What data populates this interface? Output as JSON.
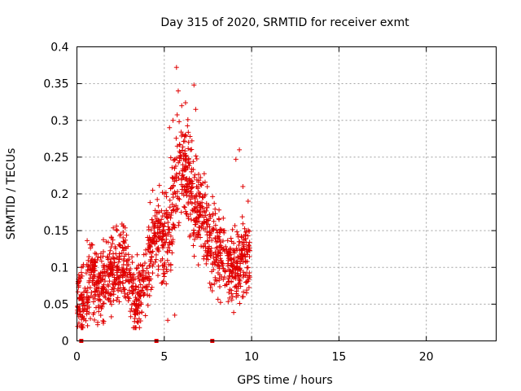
{
  "chart_data": {
    "type": "scatter",
    "title": "Day 315 of 2020, SRMTID for receiver exmt",
    "xlabel": "GPS time / hours",
    "ylabel": "SRMTID / TECUs",
    "xlim": [
      0,
      24
    ],
    "ylim": [
      0,
      0.4
    ],
    "x_ticks": [
      0,
      5,
      10,
      15,
      20
    ],
    "x_tick_labels": [
      "0",
      "5",
      "10",
      "15",
      "20"
    ],
    "y_ticks": [
      0,
      0.05,
      0.1,
      0.15,
      0.2,
      0.25,
      0.3,
      0.35,
      0.4
    ],
    "y_tick_labels": [
      "0",
      "0.05",
      "0.1",
      "0.15",
      "0.2",
      "0.25",
      "0.3",
      "0.35",
      "0.4"
    ],
    "grid": true,
    "series_color": "#e00000",
    "zero_markers_x": [
      0.25,
      4.55,
      7.75
    ],
    "trend": [
      {
        "x": 0.0,
        "y": 0.065
      },
      {
        "x": 0.3,
        "y": 0.045
      },
      {
        "x": 0.5,
        "y": 0.07
      },
      {
        "x": 0.8,
        "y": 0.09
      },
      {
        "x": 1.0,
        "y": 0.085
      },
      {
        "x": 1.3,
        "y": 0.07
      },
      {
        "x": 1.6,
        "y": 0.08
      },
      {
        "x": 2.0,
        "y": 0.095
      },
      {
        "x": 2.4,
        "y": 0.1
      },
      {
        "x": 2.8,
        "y": 0.11
      },
      {
        "x": 3.2,
        "y": 0.07
      },
      {
        "x": 3.5,
        "y": 0.055
      },
      {
        "x": 3.9,
        "y": 0.085
      },
      {
        "x": 4.3,
        "y": 0.13
      },
      {
        "x": 4.7,
        "y": 0.145
      },
      {
        "x": 5.0,
        "y": 0.13
      },
      {
        "x": 5.3,
        "y": 0.15
      },
      {
        "x": 5.7,
        "y": 0.22
      },
      {
        "x": 6.0,
        "y": 0.24
      },
      {
        "x": 6.4,
        "y": 0.22
      },
      {
        "x": 6.8,
        "y": 0.17
      },
      {
        "x": 7.2,
        "y": 0.18
      },
      {
        "x": 7.6,
        "y": 0.13
      },
      {
        "x": 8.0,
        "y": 0.12
      },
      {
        "x": 8.5,
        "y": 0.11
      },
      {
        "x": 9.0,
        "y": 0.1
      },
      {
        "x": 9.4,
        "y": 0.11
      },
      {
        "x": 9.9,
        "y": 0.12
      }
    ],
    "spread": 0.03,
    "n_points": 1400,
    "highlights": [
      {
        "x": 5.7,
        "y": 0.372
      },
      {
        "x": 6.7,
        "y": 0.348
      },
      {
        "x": 5.8,
        "y": 0.34
      },
      {
        "x": 6.0,
        "y": 0.32
      },
      {
        "x": 6.8,
        "y": 0.315
      },
      {
        "x": 5.5,
        "y": 0.3
      },
      {
        "x": 9.3,
        "y": 0.26
      },
      {
        "x": 9.1,
        "y": 0.247
      },
      {
        "x": 6.5,
        "y": 0.26
      },
      {
        "x": 5.3,
        "y": 0.29
      },
      {
        "x": 6.2,
        "y": 0.28
      },
      {
        "x": 5.2,
        "y": 0.028
      },
      {
        "x": 3.5,
        "y": 0.025
      },
      {
        "x": 0.3,
        "y": 0.022
      },
      {
        "x": 5.6,
        "y": 0.035
      },
      {
        "x": 9.5,
        "y": 0.21
      },
      {
        "x": 9.8,
        "y": 0.19
      }
    ]
  }
}
